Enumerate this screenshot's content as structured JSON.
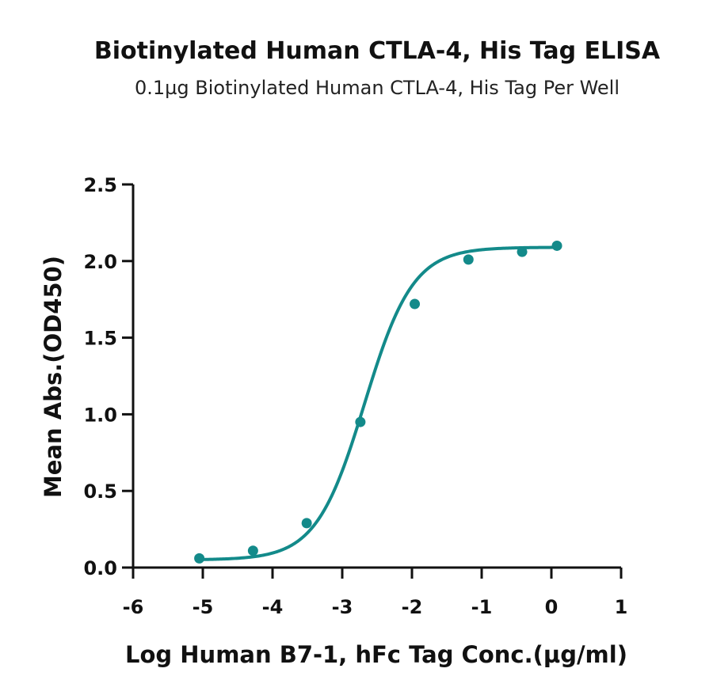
{
  "chart_data": {
    "type": "scatter",
    "title": "Biotinylated Human CTLA-4, His Tag ELISA",
    "subtitle": "0.1µg Biotinylated Human CTLA-4, His Tag Per Well",
    "xlabel": "Log Human B7-1, hFc Tag Conc.(µg/ml)",
    "ylabel": "Mean Abs.(OD450)",
    "xlim": [
      -6,
      1
    ],
    "ylim": [
      0,
      2.5
    ],
    "x_ticks": [
      "-6",
      "-5",
      "-4",
      "-3",
      "-2",
      "-1",
      "0",
      "1"
    ],
    "y_ticks": [
      "0.0",
      "0.5",
      "1.0",
      "1.5",
      "2.0",
      "2.5"
    ],
    "grid": false,
    "series": [
      {
        "color": "#138a8a",
        "points": [
          {
            "x": -5.05,
            "y": 0.06
          },
          {
            "x": -4.28,
            "y": 0.11
          },
          {
            "x": -3.51,
            "y": 0.29
          },
          {
            "x": -2.74,
            "y": 0.95
          },
          {
            "x": -1.96,
            "y": 1.72
          },
          {
            "x": -1.19,
            "y": 2.01
          },
          {
            "x": -0.42,
            "y": 2.06
          },
          {
            "x": 0.08,
            "y": 2.1
          }
        ],
        "fit": {
          "model": "4PL",
          "bottom": 0.05,
          "top": 2.09,
          "logEC50": -2.68,
          "hill": 1.25
        }
      }
    ]
  }
}
